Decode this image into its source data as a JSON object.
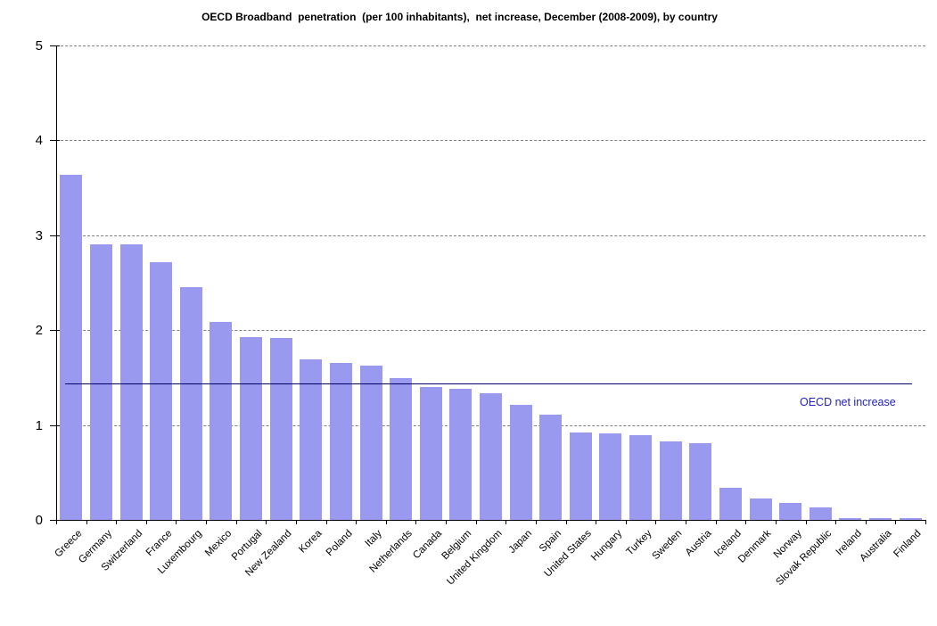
{
  "chart_data": {
    "type": "bar",
    "title": "OECD Broadband  penetration  (per 100 inhabitants),  net increase, December (2008-2009), by country",
    "categories": [
      "Greece",
      "Germany",
      "Switzerland",
      "France",
      "Luxembourg",
      "Mexico",
      "Portugal",
      "New Zealand",
      "Korea",
      "Poland",
      "Italy",
      "Netherlands",
      "Canada",
      "Belgium",
      "United Kingdom",
      "Japan",
      "Spain",
      "United States",
      "Hungary",
      "Turkey",
      "Sweden",
      "Austria",
      "Iceland",
      "Denmark",
      "Norway",
      "Slovak Republic",
      "Ireland",
      "Australia",
      "Finland"
    ],
    "values": [
      3.64,
      2.9,
      2.9,
      2.72,
      2.45,
      2.09,
      1.93,
      1.92,
      1.69,
      1.65,
      1.63,
      1.49,
      1.4,
      1.38,
      1.33,
      1.21,
      1.11,
      0.92,
      0.91,
      0.89,
      0.83,
      0.81,
      0.34,
      0.23,
      0.18,
      0.13,
      0.02,
      0.02,
      0.02
    ],
    "xlabel": "",
    "ylabel": "",
    "ylim": [
      0,
      5
    ],
    "yticks": [
      0,
      1,
      2,
      3,
      4,
      5
    ],
    "grid": "horizontal-dashed",
    "legend_position": "none",
    "bar_color": "#9999EF",
    "reference_line": {
      "label": "OECD net increase",
      "value": 1.44,
      "line_color": "#000066",
      "label_color": "#2222BB"
    }
  }
}
